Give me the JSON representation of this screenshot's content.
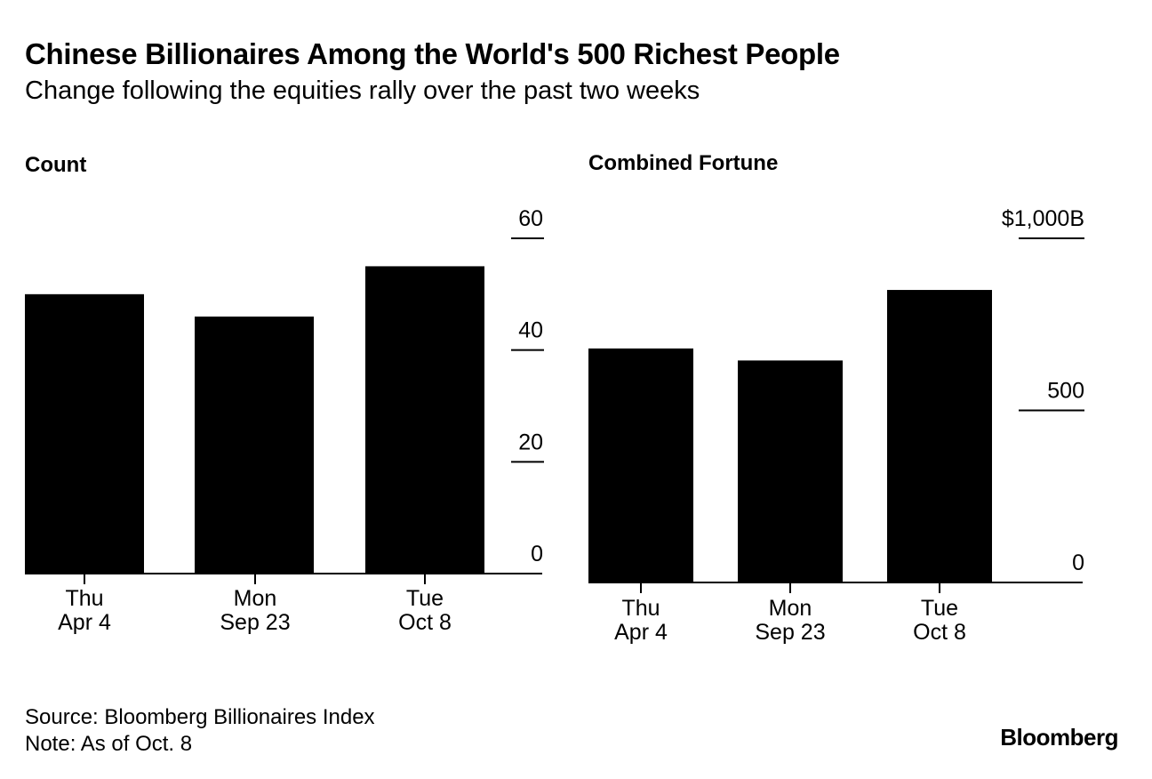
{
  "title": "Chinese Billionaires Among the World's 500 Richest People",
  "subtitle": "Change following the equities rally over the past two weeks",
  "chart_data": [
    {
      "type": "bar",
      "title": "Count",
      "categories": [
        "Thu\nApr 4",
        "Mon\nSep 23",
        "Tue\nOct 8"
      ],
      "values": [
        50,
        46,
        55
      ],
      "ylim": [
        0,
        60
      ],
      "yticks": [
        0,
        20,
        40,
        60
      ],
      "ytick_labels": [
        "0",
        "20",
        "40",
        "60"
      ],
      "xlabel": "",
      "ylabel": "",
      "grid": false
    },
    {
      "type": "bar",
      "title": "Combined Fortune",
      "categories": [
        "Thu\nApr 4",
        "Mon\nSep 23",
        "Tue\nOct 8"
      ],
      "values": [
        680,
        645,
        850
      ],
      "ylim": [
        0,
        1000
      ],
      "yticks": [
        0,
        500,
        1000
      ],
      "ytick_labels": [
        "0",
        "500",
        "$1,000B"
      ],
      "xlabel": "",
      "ylabel": "",
      "grid": false
    }
  ],
  "footer": {
    "source": "Source: Bloomberg Billionaires Index",
    "note": "Note: As of Oct. 8",
    "logo": "Bloomberg"
  }
}
